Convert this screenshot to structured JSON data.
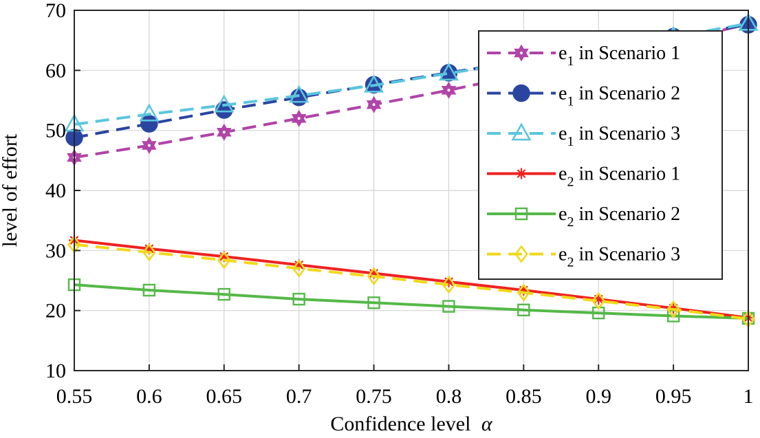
{
  "chart_data": {
    "type": "line",
    "xlabel": "Confidence level",
    "xlabel_symbol": "α",
    "ylabel": "level of effort",
    "xlim": [
      0.55,
      1
    ],
    "ylim": [
      10,
      70
    ],
    "x_ticks": [
      0.55,
      0.6,
      0.65,
      0.7,
      0.75,
      0.8,
      0.85,
      0.9,
      0.95,
      1
    ],
    "x_tick_labels": [
      "0.55",
      "0.6",
      "0.65",
      "0.7",
      "0.75",
      "0.8",
      "0.85",
      "0.9",
      "0.95",
      "1"
    ],
    "y_ticks": [
      10,
      20,
      30,
      40,
      50,
      60,
      70
    ],
    "y_tick_labels": [
      "10",
      "20",
      "30",
      "40",
      "50",
      "60",
      "70"
    ],
    "grid": true,
    "legend_position": "top-right",
    "x": [
      0.55,
      0.6,
      0.65,
      0.7,
      0.75,
      0.8,
      0.85,
      0.9,
      0.95,
      1
    ],
    "series": [
      {
        "name": "e1 in Scenario 1",
        "legend_var": "e",
        "legend_sub": "1",
        "legend_rest": " in Scenario 1",
        "color": "#b044a8",
        "dash": "dashed",
        "marker": "hexagram",
        "values": [
          45.5,
          47.5,
          49.7,
          52.0,
          54.3,
          56.7,
          59.3,
          62.0,
          64.8,
          67.7
        ]
      },
      {
        "name": "e1 in Scenario 2",
        "legend_var": "e",
        "legend_sub": "1",
        "legend_rest": " in Scenario 2",
        "color": "#2a45a0",
        "dash": "dashed",
        "marker": "circle",
        "values": [
          48.8,
          51.1,
          53.4,
          55.5,
          57.6,
          59.6,
          61.6,
          63.6,
          65.6,
          67.6
        ]
      },
      {
        "name": "e1 in Scenario 3",
        "legend_var": "e",
        "legend_sub": "1",
        "legend_rest": " in Scenario 3",
        "color": "#5bc6de",
        "dash": "dashed",
        "marker": "triangle",
        "values": [
          51.0,
          52.7,
          54.2,
          55.8,
          57.5,
          59.5,
          61.5,
          63.5,
          65.6,
          67.8
        ]
      },
      {
        "name": "e2 in Scenario 1",
        "legend_var": "e",
        "legend_sub": "2",
        "legend_rest": " in Scenario 1",
        "color": "#ee2222",
        "dash": "solid",
        "marker": "asterisk",
        "values": [
          31.7,
          30.3,
          29.0,
          27.6,
          26.2,
          24.8,
          23.4,
          21.9,
          20.4,
          18.8
        ]
      },
      {
        "name": "e2 in Scenario 2",
        "legend_var": "e",
        "legend_sub": "2",
        "legend_rest": " in Scenario 2",
        "color": "#55b848",
        "dash": "solid",
        "marker": "square",
        "values": [
          24.3,
          23.4,
          22.7,
          21.9,
          21.3,
          20.7,
          20.1,
          19.6,
          19.1,
          18.7
        ]
      },
      {
        "name": "e2 in Scenario 3",
        "legend_var": "e",
        "legend_sub": "2",
        "legend_rest": " in Scenario 3",
        "color": "#f0d81a",
        "dash": "dashed",
        "marker": "diamond",
        "values": [
          31.0,
          29.7,
          28.4,
          27.0,
          25.7,
          24.3,
          23.0,
          21.6,
          20.2,
          18.6
        ]
      }
    ]
  }
}
